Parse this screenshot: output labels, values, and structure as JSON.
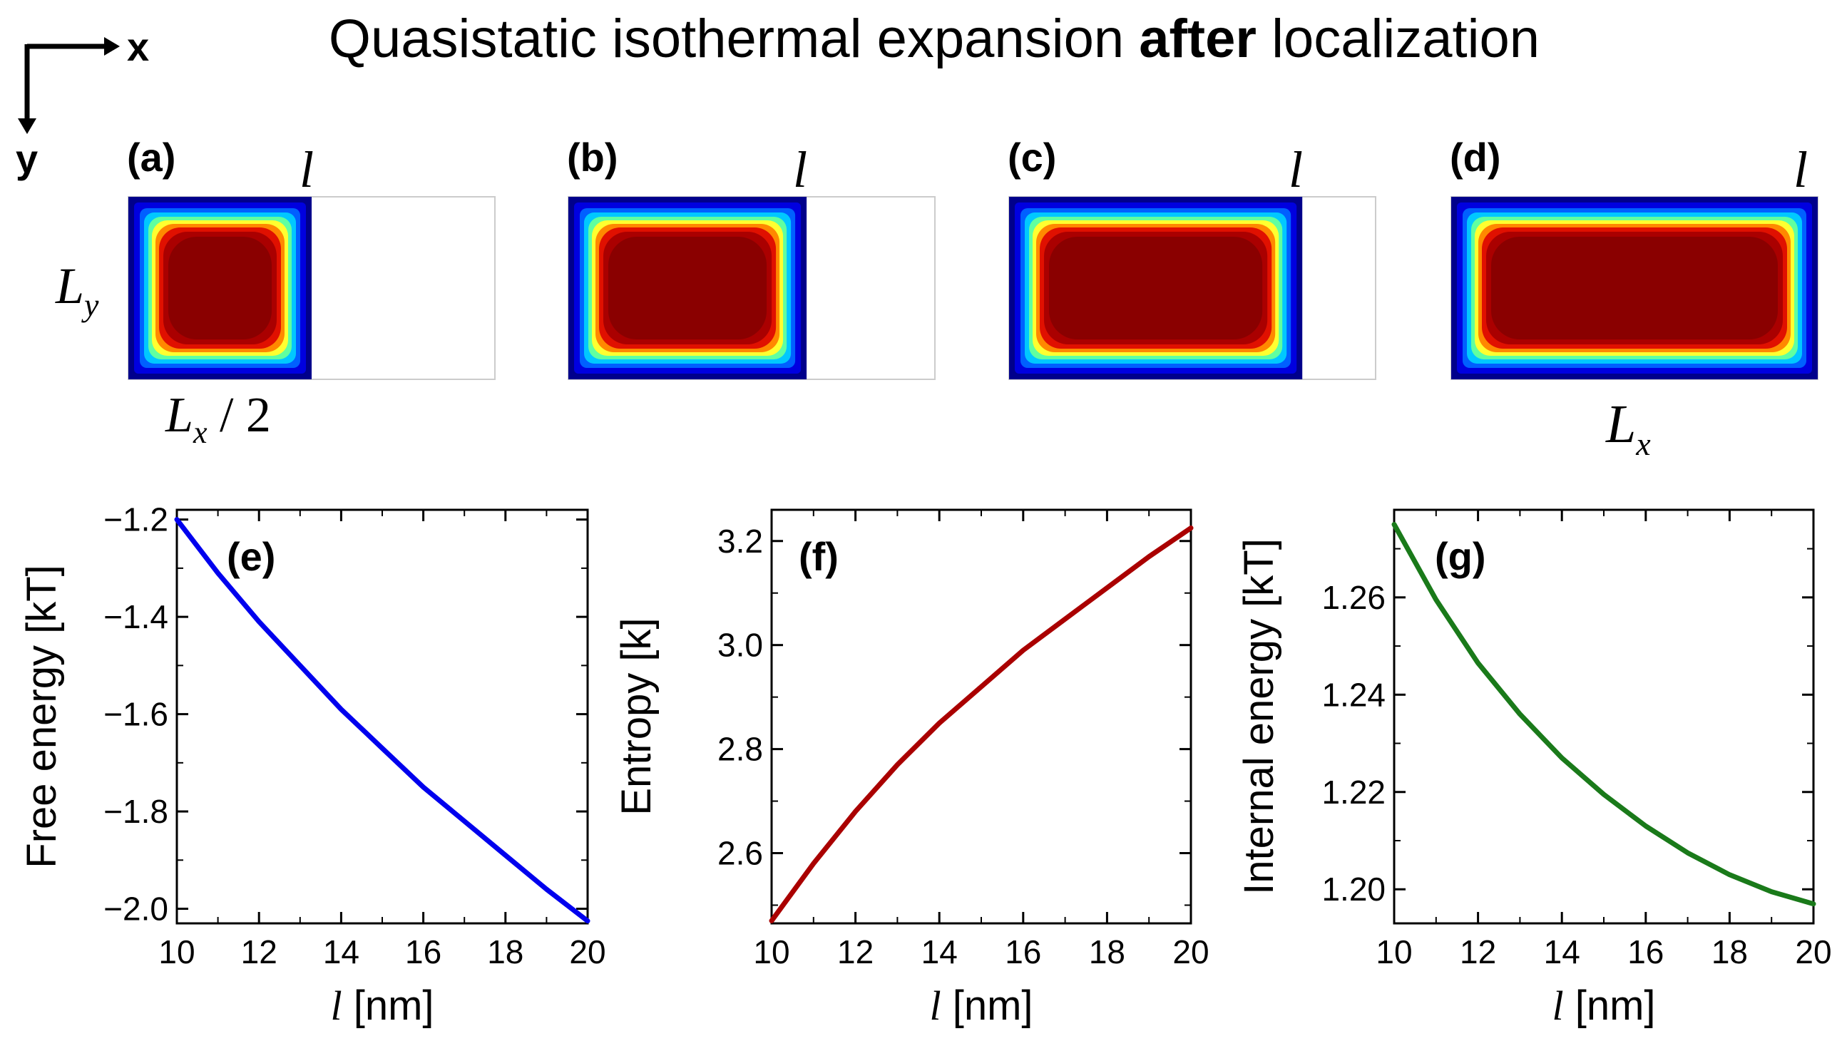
{
  "title": {
    "prefix": "Quasistatic isothermal expansion ",
    "bold": "after",
    "suffix": " localization"
  },
  "axes_indicator": {
    "x_label": "x",
    "y_label": "y"
  },
  "panels": {
    "wall_label": "l",
    "ly_base": "L",
    "ly_sub": "y",
    "lx_half_base": "L",
    "lx_half_sub": "x",
    "lx_half_rest": " / 2",
    "lx_full_base": "L",
    "lx_full_sub": "x",
    "items": [
      {
        "tag": "(a)",
        "fill_fraction": 0.5
      },
      {
        "tag": "(b)",
        "fill_fraction": 0.65
      },
      {
        "tag": "(c)",
        "fill_fraction": 0.8
      },
      {
        "tag": "(d)",
        "fill_fraction": 1.0
      }
    ]
  },
  "colors": {
    "blue": "#0000ee",
    "darkred": "#aa0000",
    "green": "#1a7a1a",
    "heat_outer": "#00008b",
    "heat_inner": "#800000"
  },
  "chart_data": [
    {
      "type": "line",
      "tag": "(e)",
      "xlabel_italic": "l",
      "xlabel_rest": " [nm]",
      "ylabel": "Free energy [kT]",
      "xlim": [
        10,
        20
      ],
      "ylim": [
        -2.03,
        -1.18
      ],
      "xticks": [
        10,
        12,
        14,
        16,
        18,
        20
      ],
      "yticks": [
        -2.0,
        -1.8,
        -1.6,
        -1.4,
        -1.2
      ],
      "ytick_labels": [
        "−2.0",
        "−1.8",
        "−1.6",
        "−1.4",
        "−1.2"
      ],
      "series": [
        {
          "name": "Free energy",
          "color": "#0000ee",
          "x": [
            10,
            11,
            12,
            13,
            14,
            15,
            16,
            17,
            18,
            19,
            20
          ],
          "y": [
            -1.2,
            -1.31,
            -1.41,
            -1.5,
            -1.59,
            -1.67,
            -1.75,
            -1.82,
            -1.89,
            -1.96,
            -2.025
          ]
        }
      ]
    },
    {
      "type": "line",
      "tag": "(f)",
      "xlabel_italic": "l",
      "xlabel_rest": " [nm]",
      "ylabel": "Entropy [k]",
      "xlim": [
        10,
        20
      ],
      "ylim": [
        2.465,
        3.26
      ],
      "xticks": [
        10,
        12,
        14,
        16,
        18,
        20
      ],
      "yticks": [
        2.6,
        2.8,
        3.0,
        3.2
      ],
      "ytick_labels": [
        "2.6",
        "2.8",
        "3.0",
        "3.2"
      ],
      "series": [
        {
          "name": "Entropy",
          "color": "#aa0000",
          "x": [
            10,
            11,
            12,
            13,
            14,
            15,
            16,
            17,
            18,
            19,
            20
          ],
          "y": [
            2.47,
            2.58,
            2.68,
            2.77,
            2.85,
            2.92,
            2.99,
            3.05,
            3.11,
            3.17,
            3.225
          ]
        }
      ]
    },
    {
      "type": "line",
      "tag": "(g)",
      "xlabel_italic": "l",
      "xlabel_rest": " [nm]",
      "ylabel": "Internal energy [kT]",
      "xlim": [
        10,
        20
      ],
      "ylim": [
        1.193,
        1.278
      ],
      "xticks": [
        10,
        12,
        14,
        16,
        18,
        20
      ],
      "yticks": [
        1.2,
        1.22,
        1.24,
        1.26
      ],
      "ytick_labels": [
        "1.20",
        "1.22",
        "1.24",
        "1.26"
      ],
      "series": [
        {
          "name": "Internal energy",
          "color": "#1a7a1a",
          "x": [
            10,
            11,
            12,
            13,
            14,
            15,
            16,
            17,
            18,
            19,
            20
          ],
          "y": [
            1.275,
            1.2595,
            1.2465,
            1.236,
            1.227,
            1.2195,
            1.213,
            1.2075,
            1.203,
            1.1995,
            1.197
          ]
        }
      ]
    }
  ]
}
